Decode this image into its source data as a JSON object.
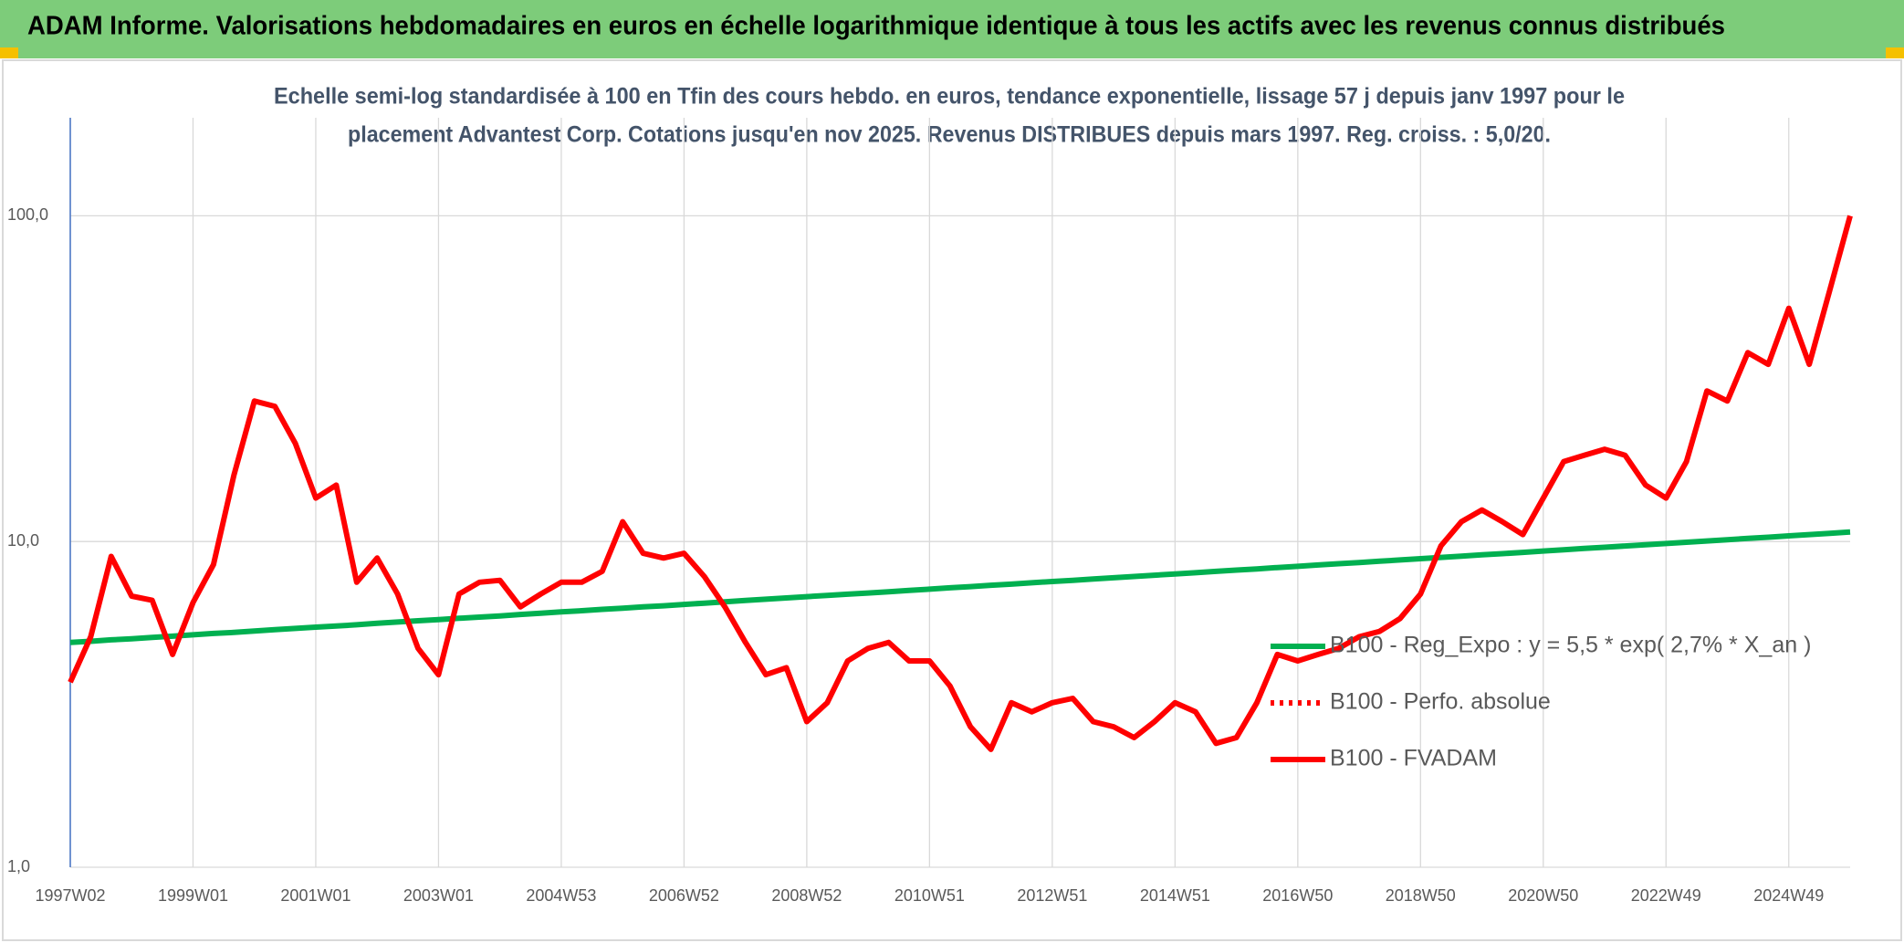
{
  "chart_data": {
    "type": "line",
    "title": "ADAM Informe. Valorisations hebdomadaires en euros en échelle logarithmique identique à tous les actifs avec les revenus connus distribués",
    "subtitle": [
      "Echelle semi-log standardisée à 100 en Tfin des cours hebdo. en euros, tendance exponentielle, lissage 57 j depuis janv 1997 pour le",
      "placement Advantest Corp. Cotations jusqu'en nov 2025. Revenus DISTRIBUES depuis mars 1997. Reg. croiss. : 5,0/20."
    ],
    "log_y": true,
    "grid": true,
    "legend": "right",
    "ylim": [
      1,
      200
    ],
    "yticks": [
      {
        "value": 1,
        "label": "1,0"
      },
      {
        "value": 10,
        "label": "10,0"
      },
      {
        "value": 100,
        "label": "100,0"
      }
    ],
    "categories": [
      "1997W02",
      null,
      null,
      null,
      null,
      null,
      "1999W01",
      null,
      null,
      null,
      null,
      null,
      "2001W01",
      null,
      null,
      null,
      null,
      null,
      "2003W01",
      null,
      null,
      null,
      null,
      null,
      "2004W53",
      null,
      null,
      null,
      null,
      null,
      "2006W52",
      null,
      null,
      null,
      null,
      null,
      "2008W52",
      null,
      null,
      null,
      null,
      null,
      "2010W51",
      null,
      null,
      null,
      null,
      null,
      "2012W51",
      null,
      null,
      null,
      null,
      null,
      "2014W51",
      null,
      null,
      null,
      null,
      null,
      "2016W50",
      null,
      null,
      null,
      null,
      null,
      "2018W50",
      null,
      null,
      null,
      null,
      null,
      "2020W50",
      null,
      null,
      null,
      null,
      null,
      "2022W49",
      null,
      null,
      null,
      null,
      null,
      "2024W49",
      null,
      null,
      null
    ],
    "series": [
      {
        "name": "B100 - Reg_Expo : y = 5,5 * exp( 2,7% *  X_an )",
        "color": "#00b050",
        "dashed": false,
        "values": [
          4.9,
          4.94,
          4.99,
          5.03,
          5.08,
          5.12,
          5.17,
          5.22,
          5.26,
          5.31,
          5.36,
          5.41,
          5.46,
          5.5,
          5.55,
          5.61,
          5.66,
          5.71,
          5.76,
          5.81,
          5.86,
          5.91,
          5.97,
          6.02,
          6.08,
          6.13,
          6.19,
          6.24,
          6.3,
          6.35,
          6.41,
          6.47,
          6.53,
          6.59,
          6.65,
          6.71,
          6.77,
          6.83,
          6.89,
          6.95,
          7.01,
          7.08,
          7.14,
          7.21,
          7.27,
          7.34,
          7.4,
          7.47,
          7.54,
          7.6,
          7.67,
          7.74,
          7.81,
          7.88,
          7.95,
          8.02,
          8.1,
          8.17,
          8.24,
          8.32,
          8.39,
          8.47,
          8.55,
          8.62,
          8.7,
          8.78,
          8.86,
          8.94,
          9.02,
          9.1,
          9.18,
          9.26,
          9.35,
          9.43,
          9.52,
          9.6,
          9.69,
          9.78,
          9.86,
          9.95,
          10.04,
          10.13,
          10.22,
          10.31,
          10.41,
          10.5,
          10.6,
          10.7
        ]
      },
      {
        "name": "B100 - Perfo. absolue",
        "color": "#ff0000",
        "dashed": true,
        "values": [
          null,
          null,
          null,
          null,
          null,
          null,
          null,
          null,
          null,
          null,
          null,
          null,
          null,
          null,
          null,
          null,
          null,
          null,
          null,
          null,
          null,
          null,
          null,
          null,
          null,
          null,
          null,
          null,
          null,
          null,
          null,
          null,
          null,
          null,
          null,
          null,
          null,
          null,
          null,
          null,
          null,
          null,
          null,
          null,
          null,
          null,
          null,
          null,
          null,
          null,
          null,
          null,
          null,
          null,
          null,
          null,
          null,
          null,
          null,
          null,
          null,
          null,
          null,
          null,
          null,
          null,
          null,
          null,
          null,
          null,
          null,
          null,
          null,
          null,
          null,
          null,
          null,
          null,
          null,
          null,
          null,
          null,
          null,
          null,
          null,
          null,
          null,
          null
        ]
      },
      {
        "name": "B100 - FVADAM",
        "color": "#ff0000",
        "dashed": false,
        "values": [
          3.7,
          5.1,
          9.0,
          6.8,
          6.6,
          4.5,
          6.5,
          8.5,
          16,
          27,
          26,
          20,
          13.6,
          14.9,
          7.5,
          8.9,
          6.9,
          4.7,
          3.9,
          6.9,
          7.5,
          7.6,
          6.3,
          6.9,
          7.5,
          7.5,
          8.1,
          11.5,
          9.2,
          8.9,
          9.2,
          7.8,
          6.3,
          4.9,
          3.9,
          4.1,
          2.8,
          3.2,
          4.3,
          4.7,
          4.9,
          4.3,
          4.3,
          3.6,
          2.7,
          2.3,
          3.2,
          3.0,
          3.2,
          3.3,
          2.8,
          2.7,
          2.5,
          2.8,
          3.2,
          3.0,
          2.4,
          2.5,
          3.2,
          4.5,
          4.3,
          4.5,
          4.7,
          5.1,
          5.3,
          5.8,
          6.9,
          9.7,
          11.5,
          12.5,
          11.5,
          10.5,
          13.6,
          17.6,
          18.4,
          19.2,
          18.4,
          14.9,
          13.6,
          17.6,
          29,
          27,
          38,
          35,
          52,
          35,
          59,
          100
        ]
      }
    ]
  }
}
